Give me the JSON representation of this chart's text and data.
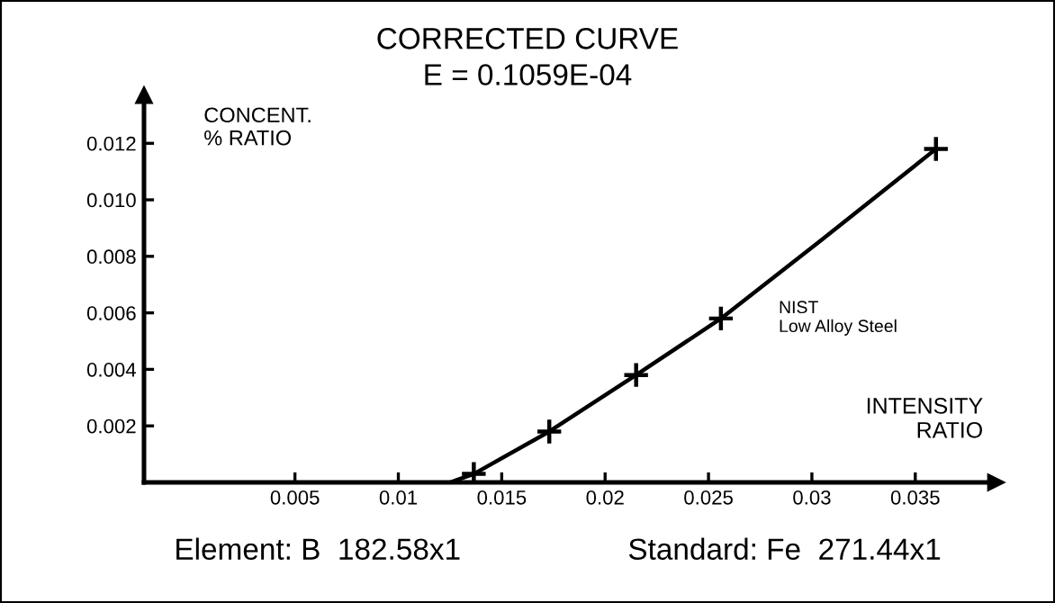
{
  "chart_data": {
    "type": "line",
    "title": "CORRECTED CURVE",
    "subtitle": "E = 0.1059E-04",
    "xlabel": "INTENSITY\nRATIO",
    "ylabel": "CONCENT.\n% RATIO",
    "annotations": [
      "NIST\nLow Alloy Steel",
      "Element: B  182.58x1",
      "Standard: Fe  271.44x1"
    ],
    "series": [
      {
        "color": "#000000",
        "marker": "none",
        "x": [
          0.0125,
          0.01365,
          0.0173,
          0.0215,
          0.0256,
          0.0305,
          0.036
        ],
        "values": [
          0.0,
          0.0003,
          0.0018,
          0.0038,
          0.0058,
          0.0086,
          0.0118
        ]
      },
      {
        "type": "scatter",
        "color": "#000000",
        "marker": "cross",
        "x": [
          0.01365,
          0.0173,
          0.0215,
          0.0256,
          0.036
        ],
        "values": [
          0.0003,
          0.0018,
          0.0038,
          0.0058,
          0.0118
        ]
      }
    ],
    "xlim": [
      -0.0023,
      0.0389
    ],
    "ylim": [
      0,
      0.0137
    ],
    "xticks": [
      0.005,
      0.01,
      0.015,
      0.02,
      0.025,
      0.03,
      0.035
    ],
    "yticks": [
      {
        "value": 0.002,
        "label": "0.002"
      },
      {
        "value": 0.004,
        "label": "0.004"
      },
      {
        "value": 0.006,
        "label": "0.006"
      },
      {
        "value": 0.008,
        "label": "0.008"
      },
      {
        "value": 0.01,
        "label": "0.010"
      },
      {
        "value": 0.012,
        "label": "0.012"
      }
    ],
    "grid": false,
    "legend": false
  }
}
